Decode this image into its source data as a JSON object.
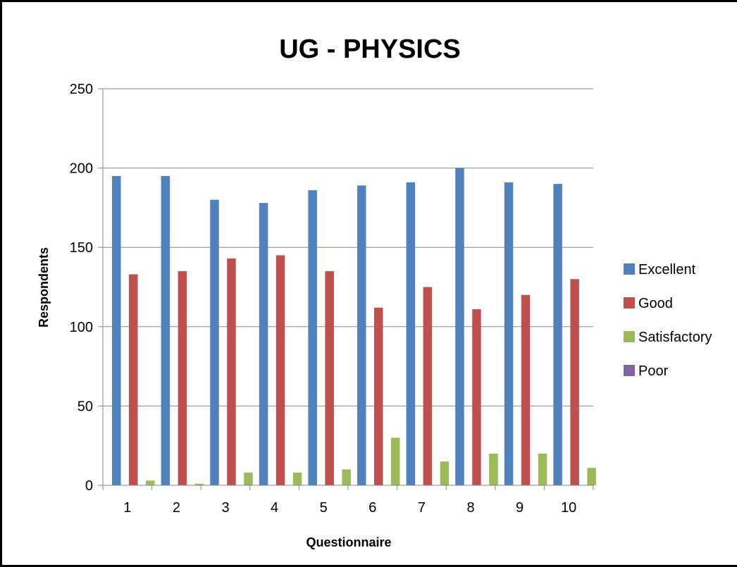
{
  "chart_data": {
    "type": "bar",
    "title": "UG - PHYSICS",
    "xlabel": "Questionnaire",
    "ylabel": "Respondents",
    "categories": [
      "1",
      "2",
      "3",
      "4",
      "5",
      "6",
      "7",
      "8",
      "9",
      "10"
    ],
    "ylim": [
      0,
      250
    ],
    "yticks": [
      0,
      50,
      100,
      150,
      200,
      250
    ],
    "grid": true,
    "legend_position": "right",
    "series": [
      {
        "name": "Excellent",
        "color": "#4F81BD",
        "values": [
          195,
          195,
          180,
          178,
          186,
          189,
          191,
          200,
          191,
          190
        ]
      },
      {
        "name": "Good",
        "color": "#C0504D",
        "values": [
          133,
          135,
          143,
          145,
          135,
          112,
          125,
          111,
          120,
          130
        ]
      },
      {
        "name": "Satisfactory",
        "color": "#9BBB59",
        "values": [
          3,
          1,
          8,
          8,
          10,
          30,
          15,
          20,
          20,
          11
        ]
      },
      {
        "name": "Poor",
        "color": "#8064A2",
        "values": [
          0,
          0,
          0,
          0,
          0,
          0,
          0,
          0,
          0,
          0
        ]
      }
    ]
  }
}
